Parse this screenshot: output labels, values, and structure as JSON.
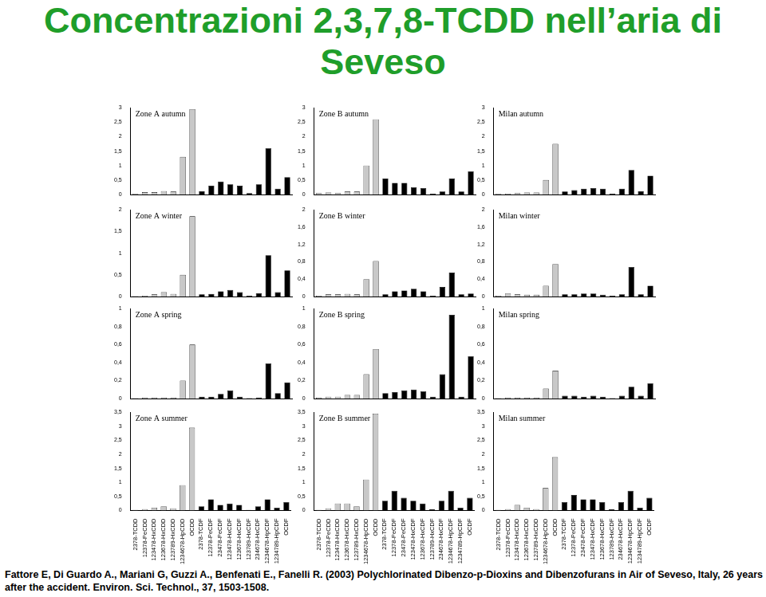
{
  "title": "Concentrazioni 2,3,7,8-TCDD nell’aria di Seveso",
  "citation": "Fattore E, Di Guardo A., Mariani G, Guzzi A., Benfenati E., Fanelli R. (2003)  Polychlorinated Dibenzo-p-Dioxins and Dibenzofurans in Air of Seveso, Italy, 26 years after the accident. Environ. Sci. Technol., 37, 1503-1508.",
  "chart_data": [
    {
      "type": "bar",
      "title": "Zone A autumn",
      "tick_labels": "y",
      "categories": [
        "2378-TCDD",
        "12378-PeCDD",
        "123478-HxCDD",
        "123678-HxCDD",
        "123789-HxCDD",
        "1234678-HpCDD",
        "OCDD",
        "2378-TCDF",
        "12378-PeCDF",
        "23478-PeCDF",
        "123478-HxCDF",
        "123678-HxCDF",
        "123789-HxCDF",
        "234678-HxCDF",
        "1234678-HpCDF",
        "1234789-HpCDF",
        "OCDF"
      ],
      "values": [
        0.02,
        0.08,
        0.08,
        0.12,
        0.1,
        1.3,
        2.95,
        0.12,
        0.3,
        0.45,
        0.35,
        0.3,
        0.05,
        0.35,
        1.6,
        0.2,
        0.6
      ],
      "colors": [
        "#c8c8c8",
        "#c8c8c8",
        "#c8c8c8",
        "#c8c8c8",
        "#c8c8c8",
        "#c8c8c8",
        "#c8c8c8",
        "#000000",
        "#000000",
        "#000000",
        "#000000",
        "#000000",
        "#000000",
        "#000000",
        "#000000",
        "#000000",
        "#000000"
      ],
      "ylim": [
        0,
        3
      ],
      "yticks": [
        0,
        {
          "value": 0.5,
          "label": "0,5"
        },
        1,
        {
          "value": 1.5,
          "label": "1,5"
        },
        2,
        {
          "value": 2.5,
          "label": "2,5"
        },
        3
      ]
    },
    {
      "type": "bar",
      "title": "Zone B autumn",
      "tick_labels": "y",
      "categories": [
        "2378-TCDD",
        "12378-PeCDD",
        "123478-HxCDD",
        "123678-HxCDD",
        "123789-HxCDD",
        "1234678-HpCDD",
        "OCDD",
        "2378-TCDF",
        "12378-PeCDF",
        "23478-PeCDF",
        "123478-HxCDF",
        "123678-HxCDF",
        "123789-HxCDF",
        "234678-HxCDF",
        "1234678-HpCDF",
        "1234789-HpCDF",
        "OCDF"
      ],
      "values": [
        0.05,
        0.07,
        0.05,
        0.1,
        0.1,
        1.0,
        2.6,
        0.55,
        0.4,
        0.4,
        0.25,
        0.22,
        0.03,
        0.1,
        0.55,
        0.1,
        0.8
      ],
      "colors": [
        "#c8c8c8",
        "#c8c8c8",
        "#c8c8c8",
        "#c8c8c8",
        "#c8c8c8",
        "#c8c8c8",
        "#c8c8c8",
        "#000000",
        "#000000",
        "#000000",
        "#000000",
        "#000000",
        "#000000",
        "#000000",
        "#000000",
        "#000000",
        "#000000"
      ],
      "ylim": [
        0,
        3
      ],
      "yticks": [
        0,
        {
          "value": 0.5,
          "label": "0,5"
        },
        1,
        {
          "value": 1.5,
          "label": "1,5"
        },
        2,
        {
          "value": 2.5,
          "label": "2,5"
        },
        3
      ]
    },
    {
      "type": "bar",
      "title": "Milan autumn",
      "tick_labels": "y",
      "categories": [
        "2378-TCDD",
        "12378-PeCDD",
        "123478-HxCDD",
        "123678-HxCDD",
        "123789-HxCDD",
        "1234678-HpCDD",
        "OCDD",
        "2378-TCDF",
        "12378-PeCDF",
        "23478-PeCDF",
        "123478-HxCDF",
        "123678-HxCDF",
        "123789-HxCDF",
        "234678-HxCDF",
        "1234678-HpCDF",
        "1234789-HpCDF",
        "OCDF"
      ],
      "values": [
        0.02,
        0.03,
        0.05,
        0.07,
        0.07,
        0.5,
        1.75,
        0.1,
        0.15,
        0.2,
        0.22,
        0.2,
        0.03,
        0.2,
        0.85,
        0.12,
        0.65
      ],
      "colors": [
        "#c8c8c8",
        "#c8c8c8",
        "#c8c8c8",
        "#c8c8c8",
        "#c8c8c8",
        "#c8c8c8",
        "#c8c8c8",
        "#000000",
        "#000000",
        "#000000",
        "#000000",
        "#000000",
        "#000000",
        "#000000",
        "#000000",
        "#000000",
        "#000000"
      ],
      "ylim": [
        0,
        3
      ],
      "yticks": [
        0,
        {
          "value": 0.5,
          "label": "0,5"
        },
        1,
        {
          "value": 1.5,
          "label": "1,5"
        },
        2,
        {
          "value": 2.5,
          "label": "2,5"
        },
        3
      ]
    },
    {
      "type": "bar",
      "title": "Zone A winter",
      "tick_labels": "y",
      "categories": [
        "2378-TCDD",
        "12378-PeCDD",
        "123478-HxCDD",
        "123678-HxCDD",
        "123789-HxCDD",
        "1234678-HpCDD",
        "OCDD",
        "2378-TCDF",
        "12378-PeCDF",
        "23478-PeCDF",
        "123478-HxCDF",
        "123678-HxCDF",
        "123789-HxCDF",
        "234678-HxCDF",
        "1234678-HpCDF",
        "1234789-HpCDF",
        "OCDF"
      ],
      "values": [
        0.01,
        0.02,
        0.05,
        0.1,
        0.06,
        0.5,
        1.85,
        0.05,
        0.06,
        0.12,
        0.15,
        0.1,
        0.02,
        0.08,
        0.95,
        0.1,
        0.6
      ],
      "colors": [
        "#c8c8c8",
        "#c8c8c8",
        "#c8c8c8",
        "#c8c8c8",
        "#c8c8c8",
        "#c8c8c8",
        "#c8c8c8",
        "#000000",
        "#000000",
        "#000000",
        "#000000",
        "#000000",
        "#000000",
        "#000000",
        "#000000",
        "#000000",
        "#000000"
      ],
      "ylim": [
        0,
        2
      ],
      "yticks": [
        0,
        {
          "value": 0.5,
          "label": "0,5"
        },
        1,
        {
          "value": 1.5,
          "label": "1,5"
        },
        2
      ]
    },
    {
      "type": "bar",
      "title": "Zone B winter",
      "tick_labels": "y",
      "categories": [
        "2378-TCDD",
        "12378-PeCDD",
        "123478-HxCDD",
        "123678-HxCDD",
        "123789-HxCDD",
        "1234678-HpCDD",
        "OCDD",
        "2378-TCDF",
        "12378-PeCDF",
        "23478-PeCDF",
        "123478-HxCDF",
        "123678-HxCDF",
        "123789-HxCDF",
        "234678-HxCDF",
        "1234678-HpCDF",
        "1234789-HpCDF",
        "OCDF"
      ],
      "values": [
        0.02,
        0.05,
        0.05,
        0.06,
        0.05,
        0.4,
        0.82,
        0.05,
        0.12,
        0.14,
        0.18,
        0.12,
        0.02,
        0.22,
        0.55,
        0.05,
        0.07
      ],
      "colors": [
        "#c8c8c8",
        "#c8c8c8",
        "#c8c8c8",
        "#c8c8c8",
        "#c8c8c8",
        "#c8c8c8",
        "#c8c8c8",
        "#000000",
        "#000000",
        "#000000",
        "#000000",
        "#000000",
        "#000000",
        "#000000",
        "#000000",
        "#000000",
        "#000000"
      ],
      "ylim": [
        0,
        2
      ],
      "yticks": [
        0,
        {
          "value": 0.4,
          "label": "0,4"
        },
        {
          "value": 0.8,
          "label": "0,8"
        },
        {
          "value": 1.2,
          "label": "1,2"
        },
        {
          "value": 1.6,
          "label": "1,6"
        },
        2
      ]
    },
    {
      "type": "bar",
      "title": "Milan winter",
      "tick_labels": "y",
      "categories": [
        "2378-TCDD",
        "12378-PeCDD",
        "123478-HxCDD",
        "123678-HxCDD",
        "123789-HxCDD",
        "1234678-HpCDD",
        "OCDD",
        "2378-TCDF",
        "12378-PeCDF",
        "23478-PeCDF",
        "123478-HxCDF",
        "123678-HxCDF",
        "123789-HxCDF",
        "234678-HxCDF",
        "1234678-HpCDF",
        "1234789-HpCDF",
        "OCDF"
      ],
      "values": [
        0.02,
        0.07,
        0.05,
        0.04,
        0.04,
        0.25,
        0.75,
        0.05,
        0.05,
        0.07,
        0.07,
        0.04,
        0.02,
        0.05,
        0.68,
        0.05,
        0.25
      ],
      "colors": [
        "#c8c8c8",
        "#c8c8c8",
        "#c8c8c8",
        "#c8c8c8",
        "#c8c8c8",
        "#c8c8c8",
        "#c8c8c8",
        "#000000",
        "#000000",
        "#000000",
        "#000000",
        "#000000",
        "#000000",
        "#000000",
        "#000000",
        "#000000",
        "#000000"
      ],
      "ylim": [
        0,
        2
      ],
      "yticks": [
        0,
        {
          "value": 0.4,
          "label": "0,4"
        },
        {
          "value": 0.8,
          "label": "0,8"
        },
        {
          "value": 1.2,
          "label": "1,2"
        },
        {
          "value": 1.6,
          "label": "1,6"
        },
        2
      ]
    },
    {
      "type": "bar",
      "title": "Zone A spring",
      "tick_labels": "y",
      "categories": [
        "2378-TCDD",
        "12378-PeCDD",
        "123478-HxCDD",
        "123678-HxCDD",
        "123789-HxCDD",
        "1234678-HpCDD",
        "OCDD",
        "2378-TCDF",
        "12378-PeCDF",
        "23478-PeCDF",
        "123478-HxCDF",
        "123678-HxCDF",
        "123789-HxCDF",
        "234678-HxCDF",
        "1234678-HpCDF",
        "1234789-HpCDF",
        "OCDF"
      ],
      "values": [
        0.005,
        0.01,
        0.01,
        0.01,
        0.01,
        0.2,
        0.6,
        0.02,
        0.02,
        0.05,
        0.09,
        0.02,
        0.005,
        0.01,
        0.39,
        0.06,
        0.18
      ],
      "colors": [
        "#c8c8c8",
        "#c8c8c8",
        "#c8c8c8",
        "#c8c8c8",
        "#c8c8c8",
        "#c8c8c8",
        "#c8c8c8",
        "#000000",
        "#000000",
        "#000000",
        "#000000",
        "#000000",
        "#000000",
        "#000000",
        "#000000",
        "#000000",
        "#000000"
      ],
      "ylim": [
        0,
        1
      ],
      "yticks": [
        0,
        {
          "value": 0.2,
          "label": "0,2"
        },
        {
          "value": 0.4,
          "label": "0,4"
        },
        {
          "value": 0.6,
          "label": "0,6"
        },
        {
          "value": 0.8,
          "label": "0,8"
        },
        1
      ]
    },
    {
      "type": "bar",
      "title": "Zone B spring",
      "tick_labels": "y",
      "categories": [
        "2378-TCDD",
        "12378-PeCDD",
        "123478-HxCDD",
        "123678-HxCDD",
        "123789-HxCDD",
        "1234678-HpCDD",
        "OCDD",
        "2378-TCDF",
        "12378-PeCDF",
        "23478-PeCDF",
        "123478-HxCDF",
        "123678-HxCDF",
        "123789-HxCDF",
        "234678-HxCDF",
        "1234678-HpCDF",
        "1234789-HpCDF",
        "OCDF"
      ],
      "values": [
        0.01,
        0.02,
        0.02,
        0.04,
        0.04,
        0.27,
        0.55,
        0.06,
        0.07,
        0.09,
        0.1,
        0.08,
        0.02,
        0.27,
        0.93,
        0.02,
        0.47
      ],
      "colors": [
        "#c8c8c8",
        "#c8c8c8",
        "#c8c8c8",
        "#c8c8c8",
        "#c8c8c8",
        "#c8c8c8",
        "#c8c8c8",
        "#000000",
        "#000000",
        "#000000",
        "#000000",
        "#000000",
        "#000000",
        "#000000",
        "#000000",
        "#000000",
        "#000000"
      ],
      "ylim": [
        0,
        1
      ],
      "yticks": [
        0,
        {
          "value": 0.2,
          "label": "0,2"
        },
        {
          "value": 0.4,
          "label": "0,4"
        },
        {
          "value": 0.6,
          "label": "0,6"
        },
        {
          "value": 0.8,
          "label": "0,8"
        },
        1
      ]
    },
    {
      "type": "bar",
      "title": "Milan spring",
      "tick_labels": "y",
      "categories": [
        "2378-TCDD",
        "12378-PeCDD",
        "123478-HxCDD",
        "123678-HxCDD",
        "123789-HxCDD",
        "1234678-HpCDD",
        "OCDD",
        "2378-TCDF",
        "12378-PeCDF",
        "23478-PeCDF",
        "123478-HxCDF",
        "123678-HxCDF",
        "123789-HxCDF",
        "234678-HxCDF",
        "1234678-HpCDF",
        "1234789-HpCDF",
        "OCDF"
      ],
      "values": [
        0.005,
        0.01,
        0.01,
        0.01,
        0.01,
        0.11,
        0.31,
        0.03,
        0.03,
        0.02,
        0.03,
        0.02,
        0.005,
        0.03,
        0.13,
        0.03,
        0.17
      ],
      "colors": [
        "#c8c8c8",
        "#c8c8c8",
        "#c8c8c8",
        "#c8c8c8",
        "#c8c8c8",
        "#c8c8c8",
        "#c8c8c8",
        "#000000",
        "#000000",
        "#000000",
        "#000000",
        "#000000",
        "#000000",
        "#000000",
        "#000000",
        "#000000",
        "#000000"
      ],
      "ylim": [
        0,
        1
      ],
      "yticks": [
        0,
        {
          "value": 0.2,
          "label": "0,2"
        },
        {
          "value": 0.4,
          "label": "0,4"
        },
        {
          "value": 0.6,
          "label": "0,6"
        },
        {
          "value": 0.8,
          "label": "0,8"
        },
        1
      ]
    },
    {
      "type": "bar",
      "title": "Zone A summer",
      "categories": [
        "2378-TCDD",
        "12378-PeCDD",
        "123478-HxCDD",
        "123678-HxCDD",
        "123789-HxCDD",
        "1234678-HpCDD",
        "OCDD",
        "2378-TCDF",
        "12378-PeCDF",
        "23478-PeCDF",
        "123478-HxCDF",
        "123678-HxCDF",
        "123789-HxCDF",
        "234678-HxCDF",
        "1234678-HpCDF",
        "1234789-HpCDF",
        "OCDF"
      ],
      "values": [
        0.02,
        0.05,
        0.1,
        0.15,
        0.08,
        0.9,
        2.95,
        0.15,
        0.4,
        0.2,
        0.25,
        0.2,
        0.02,
        0.15,
        0.4,
        0.1,
        0.3
      ],
      "colors": [
        "#c8c8c8",
        "#c8c8c8",
        "#c8c8c8",
        "#c8c8c8",
        "#c8c8c8",
        "#c8c8c8",
        "#c8c8c8",
        "#000000",
        "#000000",
        "#000000",
        "#000000",
        "#000000",
        "#000000",
        "#000000",
        "#000000",
        "#000000",
        "#000000"
      ],
      "ylim": [
        0,
        3.5
      ],
      "yticks": [
        0,
        {
          "value": 0.5,
          "label": "0,5"
        },
        1,
        {
          "value": 1.5,
          "label": "1,5"
        },
        2,
        {
          "value": 2.5,
          "label": "2,5"
        },
        3,
        {
          "value": 3.5,
          "label": "3,5"
        }
      ]
    },
    {
      "type": "bar",
      "title": "Zone B summer",
      "categories": [
        "2378-TCDD",
        "12378-PeCDD",
        "123478-HxCDD",
        "123678-HxCDD",
        "123789-HxCDD",
        "1234678-HpCDD",
        "OCDD",
        "2378-TCDF",
        "12378-PeCDF",
        "23478-PeCDF",
        "123478-HxCDF",
        "123678-HxCDF",
        "123789-HxCDF",
        "234678-HxCDF",
        "1234678-HpCDF",
        "1234789-HpCDF",
        "OCDF"
      ],
      "values": [
        0.02,
        0.08,
        0.25,
        0.25,
        0.15,
        1.1,
        3.45,
        0.35,
        0.7,
        0.45,
        0.35,
        0.25,
        0.05,
        0.35,
        0.7,
        0.1,
        0.45
      ],
      "colors": [
        "#c8c8c8",
        "#c8c8c8",
        "#c8c8c8",
        "#c8c8c8",
        "#c8c8c8",
        "#c8c8c8",
        "#c8c8c8",
        "#000000",
        "#000000",
        "#000000",
        "#000000",
        "#000000",
        "#000000",
        "#000000",
        "#000000",
        "#000000",
        "#000000"
      ],
      "ylim": [
        0,
        3.5
      ],
      "yticks": [
        0,
        {
          "value": 0.5,
          "label": "0,5"
        },
        1,
        {
          "value": 1.5,
          "label": "1,5"
        },
        2,
        {
          "value": 2.5,
          "label": "2,5"
        },
        3,
        {
          "value": 3.5,
          "label": "3,5"
        }
      ]
    },
    {
      "type": "bar",
      "title": "Milan summer",
      "categories": [
        "2378-TCDD",
        "12378-PeCDD",
        "123478-HxCDD",
        "123678-HxCDD",
        "123789-HxCDD",
        "1234678-HpCDD",
        "OCDD",
        "2378-TCDF",
        "12378-PeCDF",
        "23478-PeCDF",
        "123478-HxCDF",
        "123678-HxCDF",
        "123789-HxCDF",
        "234678-HxCDF",
        "1234678-HpCDF",
        "1234789-HpCDF",
        "OCDF"
      ],
      "values": [
        0.02,
        0.05,
        0.2,
        0.1,
        0.05,
        0.8,
        1.9,
        0.3,
        0.55,
        0.4,
        0.4,
        0.3,
        0.05,
        0.3,
        0.7,
        0.1,
        0.45
      ],
      "colors": [
        "#c8c8c8",
        "#c8c8c8",
        "#c8c8c8",
        "#c8c8c8",
        "#c8c8c8",
        "#c8c8c8",
        "#c8c8c8",
        "#000000",
        "#000000",
        "#000000",
        "#000000",
        "#000000",
        "#000000",
        "#000000",
        "#000000",
        "#000000",
        "#000000"
      ],
      "ylim": [
        0,
        3.5
      ],
      "yticks": [
        0,
        {
          "value": 0.5,
          "label": "0,5"
        },
        1,
        {
          "value": 1.5,
          "label": "1,5"
        },
        2,
        {
          "value": 2.5,
          "label": "2,5"
        },
        3,
        {
          "value": 3.5,
          "label": "3,5"
        }
      ]
    }
  ]
}
